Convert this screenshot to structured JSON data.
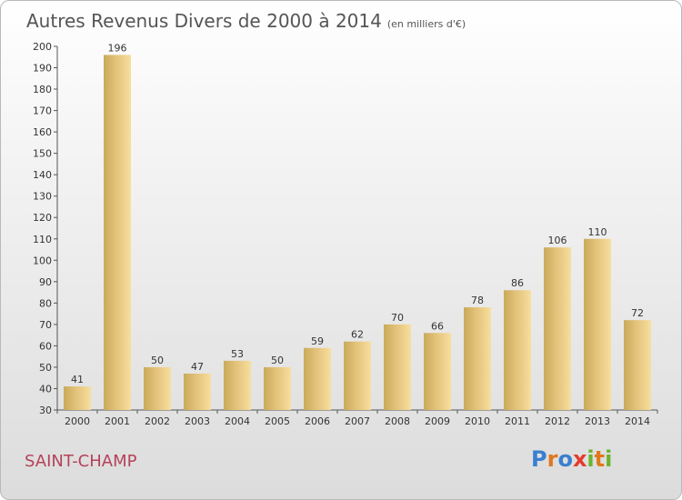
{
  "header": {
    "title": "Autres Revenus Divers de 2000 à 2014",
    "subtitle": "(en milliers d'€)"
  },
  "commune": "SAINT-CHAMP",
  "logo": {
    "text": "Proxiti",
    "letters": [
      {
        "ch": "P",
        "color": "#3a7fd0"
      },
      {
        "ch": "r",
        "color": "#e0781c"
      },
      {
        "ch": "o",
        "color": "#3a7fd0"
      },
      {
        "ch": "x",
        "color": "#e43c2e"
      },
      {
        "ch": "i",
        "color": "#6bb32e"
      },
      {
        "ch": "t",
        "color": "#e0781c"
      },
      {
        "ch": "i",
        "color": "#6bb32e"
      }
    ]
  },
  "chart_data": {
    "type": "bar",
    "title": "Autres Revenus Divers de 2000 à 2014",
    "subtitle": "(en milliers d'€)",
    "categories": [
      "2000",
      "2001",
      "2002",
      "2003",
      "2004",
      "2005",
      "2006",
      "2007",
      "2008",
      "2009",
      "2010",
      "2011",
      "2012",
      "2013",
      "2014"
    ],
    "values": [
      41,
      196,
      50,
      47,
      53,
      50,
      59,
      62,
      70,
      66,
      78,
      86,
      106,
      110,
      72
    ],
    "ylim": [
      30,
      200
    ],
    "ytick_step": 10,
    "grid": false,
    "legend": "none",
    "bar_color": "#e8c77e"
  }
}
